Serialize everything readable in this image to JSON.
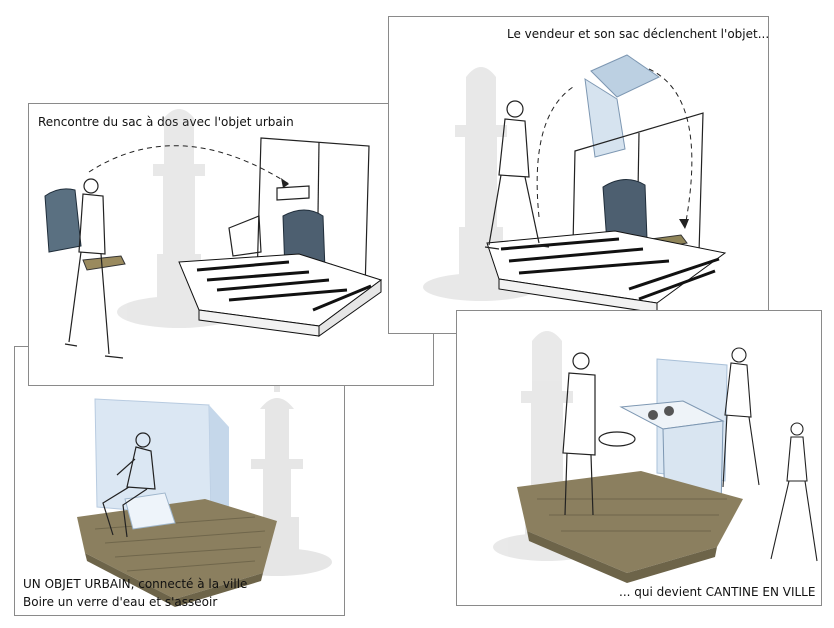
{
  "panels": {
    "backpack": {
      "caption": "Rencontre du sac à dos avec l'objet urbain"
    },
    "vendor": {
      "caption": "Le vendeur et son sac déclenchent l'objet..."
    },
    "bench": {
      "caption_line1": "UN OBJET URBAIN, connecté à la ville",
      "caption_line2": "Boire un verre d'eau et s'asseoir"
    },
    "cantine": {
      "caption": "... qui devient CANTINE EN VILLE"
    }
  }
}
